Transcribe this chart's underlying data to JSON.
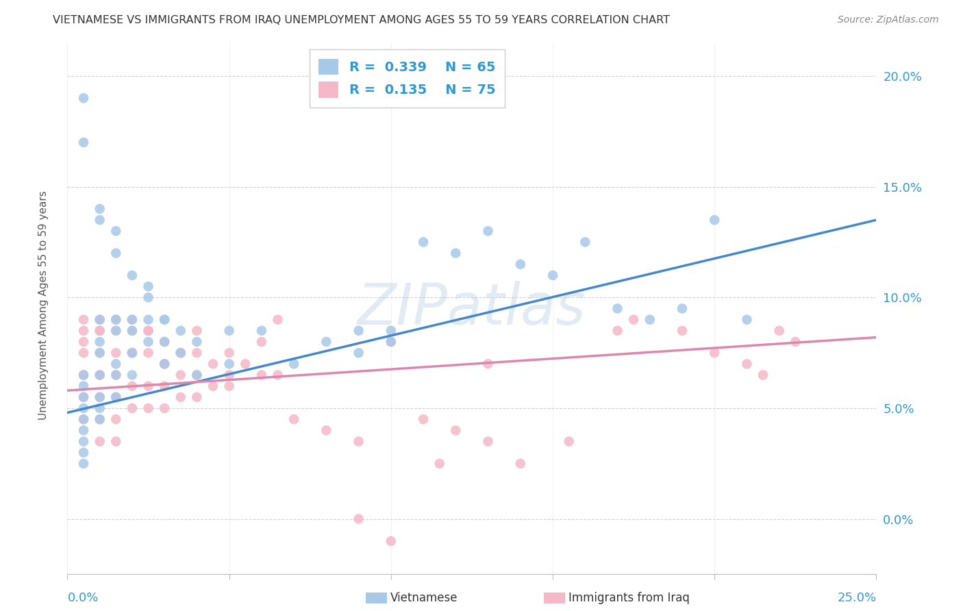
{
  "title": "VIETNAMESE VS IMMIGRANTS FROM IRAQ UNEMPLOYMENT AMONG AGES 55 TO 59 YEARS CORRELATION CHART",
  "source": "Source: ZipAtlas.com",
  "ylabel": "Unemployment Among Ages 55 to 59 years",
  "xlim": [
    0.0,
    0.25
  ],
  "ylim": [
    -0.025,
    0.215
  ],
  "yticks": [
    0.0,
    0.05,
    0.1,
    0.15,
    0.2
  ],
  "ytick_labels": [
    "0.0%",
    "5.0%",
    "10.0%",
    "15.0%",
    "20.0%"
  ],
  "blue_color": "#a8c8e8",
  "pink_color": "#f4b8c8",
  "line_blue_color": "#4488cc",
  "line_pink_color": "#dd88aa",
  "blue_line_x0": 0.0,
  "blue_line_y0": 0.048,
  "blue_line_x1": 0.25,
  "blue_line_y1": 0.135,
  "pink_line_x0": 0.0,
  "pink_line_y0": 0.058,
  "pink_line_x1": 0.25,
  "pink_line_y1": 0.082,
  "viet_x": [
    0.005,
    0.005,
    0.005,
    0.005,
    0.005,
    0.005,
    0.005,
    0.005,
    0.005,
    0.01,
    0.01,
    0.01,
    0.01,
    0.01,
    0.01,
    0.01,
    0.015,
    0.015,
    0.015,
    0.015,
    0.015,
    0.02,
    0.02,
    0.02,
    0.02,
    0.025,
    0.025,
    0.025,
    0.03,
    0.03,
    0.03,
    0.035,
    0.035,
    0.04,
    0.04,
    0.05,
    0.05,
    0.06,
    0.07,
    0.08,
    0.09,
    0.09,
    0.1,
    0.1,
    0.11,
    0.12,
    0.13,
    0.14,
    0.15,
    0.16,
    0.17,
    0.18,
    0.19,
    0.2,
    0.21,
    0.005,
    0.005,
    0.01,
    0.01,
    0.015,
    0.015,
    0.02,
    0.025,
    0.03
  ],
  "viet_y": [
    0.065,
    0.06,
    0.055,
    0.05,
    0.045,
    0.04,
    0.035,
    0.03,
    0.025,
    0.09,
    0.08,
    0.075,
    0.065,
    0.055,
    0.05,
    0.045,
    0.09,
    0.085,
    0.07,
    0.065,
    0.055,
    0.09,
    0.085,
    0.075,
    0.065,
    0.1,
    0.09,
    0.08,
    0.09,
    0.08,
    0.07,
    0.085,
    0.075,
    0.08,
    0.065,
    0.085,
    0.07,
    0.085,
    0.07,
    0.08,
    0.085,
    0.075,
    0.085,
    0.08,
    0.125,
    0.12,
    0.13,
    0.115,
    0.11,
    0.125,
    0.095,
    0.09,
    0.095,
    0.135,
    0.09,
    0.19,
    0.17,
    0.14,
    0.135,
    0.13,
    0.12,
    0.11,
    0.105,
    0.09
  ],
  "iraq_x": [
    0.005,
    0.005,
    0.005,
    0.005,
    0.005,
    0.005,
    0.01,
    0.01,
    0.01,
    0.01,
    0.01,
    0.01,
    0.01,
    0.015,
    0.015,
    0.015,
    0.015,
    0.015,
    0.015,
    0.02,
    0.02,
    0.02,
    0.02,
    0.02,
    0.025,
    0.025,
    0.025,
    0.025,
    0.03,
    0.03,
    0.03,
    0.03,
    0.035,
    0.035,
    0.035,
    0.04,
    0.04,
    0.04,
    0.045,
    0.045,
    0.05,
    0.05,
    0.055,
    0.06,
    0.065,
    0.07,
    0.08,
    0.09,
    0.1,
    0.11,
    0.12,
    0.13,
    0.14,
    0.155,
    0.17,
    0.175,
    0.19,
    0.2,
    0.21,
    0.215,
    0.22,
    0.225,
    0.005,
    0.01,
    0.015,
    0.02,
    0.025,
    0.03,
    0.035,
    0.04,
    0.05,
    0.06,
    0.065,
    0.09,
    0.1,
    0.115,
    0.13
  ],
  "iraq_y": [
    0.09,
    0.08,
    0.075,
    0.065,
    0.055,
    0.045,
    0.09,
    0.085,
    0.075,
    0.065,
    0.055,
    0.045,
    0.035,
    0.085,
    0.075,
    0.065,
    0.055,
    0.045,
    0.035,
    0.09,
    0.085,
    0.075,
    0.06,
    0.05,
    0.085,
    0.075,
    0.06,
    0.05,
    0.08,
    0.07,
    0.06,
    0.05,
    0.075,
    0.065,
    0.055,
    0.075,
    0.065,
    0.055,
    0.07,
    0.06,
    0.075,
    0.06,
    0.07,
    0.065,
    0.065,
    0.045,
    0.04,
    0.035,
    0.08,
    0.045,
    0.04,
    0.035,
    0.025,
    0.035,
    0.085,
    0.09,
    0.085,
    0.075,
    0.07,
    0.065,
    0.085,
    0.08,
    0.085,
    0.085,
    0.09,
    0.075,
    0.085,
    0.07,
    0.075,
    0.085,
    0.065,
    0.08,
    0.09,
    0.0,
    -0.01,
    0.025,
    0.07
  ]
}
